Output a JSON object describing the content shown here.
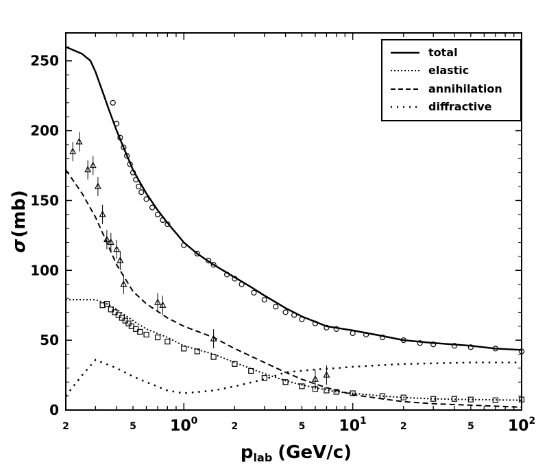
{
  "chart_data": {
    "type": "line",
    "xscale": "log",
    "xlim": [
      0.2,
      100
    ],
    "ylim": [
      0,
      270
    ],
    "xlabel_main": "p",
    "xlabel_sub": "lab",
    "xlabel_unit": "(GeV/c)",
    "ylabel_symbol": "σ",
    "ylabel_unit": "(mb)",
    "y_ticks": [
      {
        "value": 0,
        "label": "0"
      },
      {
        "value": 50,
        "label": "50"
      },
      {
        "value": 100,
        "label": "100"
      },
      {
        "value": 150,
        "label": "150"
      },
      {
        "value": 200,
        "label": "200"
      },
      {
        "value": 250,
        "label": "250"
      }
    ],
    "x_major_labels": [
      {
        "value": 0.2,
        "label": "2",
        "small": true
      },
      {
        "value": 0.5,
        "label": "5",
        "small": true
      },
      {
        "value": 1,
        "label": "10",
        "sup": "0"
      },
      {
        "value": 2,
        "label": "2",
        "small": true
      },
      {
        "value": 5,
        "label": "5",
        "small": true
      },
      {
        "value": 10,
        "label": "10",
        "sup": "1"
      },
      {
        "value": 20,
        "label": "2",
        "small": true
      },
      {
        "value": 50,
        "label": "5",
        "small": true
      },
      {
        "value": 100,
        "label": "10",
        "sup": "2"
      }
    ],
    "legend": [
      {
        "label": "total",
        "style": "solid"
      },
      {
        "label": "elastic",
        "style": "dotted"
      },
      {
        "label": "annihilation",
        "style": "dashed"
      },
      {
        "label": "diffractive",
        "style": "sparse-dotted"
      }
    ],
    "series": [
      {
        "name": "total",
        "style": "solid",
        "x": [
          0.2,
          0.25,
          0.28,
          0.3,
          0.33,
          0.36,
          0.4,
          0.45,
          0.5,
          0.55,
          0.6,
          0.7,
          0.8,
          1.0,
          1.2,
          1.5,
          2,
          2.5,
          3,
          4,
          5,
          7,
          10,
          15,
          20,
          30,
          50,
          70,
          100
        ],
        "y": [
          260,
          255,
          250,
          242,
          228,
          215,
          200,
          185,
          172,
          163,
          155,
          143,
          134,
          120,
          112,
          104,
          95,
          88,
          82,
          73,
          67,
          60,
          57,
          53,
          50,
          48,
          46,
          44,
          43
        ]
      },
      {
        "name": "elastic",
        "style": "dotted",
        "x": [
          0.2,
          0.3,
          0.35,
          0.4,
          0.5,
          0.6,
          0.8,
          1.0,
          1.5,
          2,
          3,
          4,
          5,
          6,
          8,
          10,
          15,
          20,
          30,
          50,
          100
        ],
        "y": [
          79,
          79,
          76,
          72,
          64,
          58,
          52,
          46,
          40,
          34,
          26,
          21,
          18,
          16,
          13,
          12,
          10,
          9,
          8,
          7.5,
          7
        ]
      },
      {
        "name": "annihilation",
        "style": "dashed",
        "x": [
          0.2,
          0.25,
          0.3,
          0.35,
          0.4,
          0.5,
          0.6,
          0.8,
          1.0,
          1.5,
          2,
          3,
          4,
          5,
          7,
          10,
          15,
          20,
          30,
          50,
          100
        ],
        "y": [
          172,
          155,
          138,
          120,
          104,
          85,
          76,
          66,
          60,
          52,
          44,
          34,
          27,
          22,
          16,
          11,
          8,
          6,
          4.5,
          3.5,
          2
        ]
      },
      {
        "name": "diffractive",
        "style": "sparse-dotted",
        "x": [
          0.2,
          0.25,
          0.3,
          0.4,
          0.5,
          0.6,
          0.8,
          1.0,
          1.5,
          2,
          3,
          4,
          6,
          8,
          10,
          20,
          50,
          100
        ],
        "y": [
          10,
          25,
          36,
          30,
          24,
          20,
          14,
          12,
          14,
          17,
          22,
          27,
          29,
          30,
          31,
          33,
          34,
          34
        ]
      }
    ],
    "data_points": {
      "total": {
        "marker": "circle",
        "x": [
          0.38,
          0.4,
          0.42,
          0.44,
          0.46,
          0.48,
          0.5,
          0.52,
          0.54,
          0.56,
          0.6,
          0.65,
          0.7,
          0.75,
          0.8,
          1.0,
          1.2,
          1.4,
          1.5,
          1.8,
          2.0,
          2.2,
          2.6,
          3.0,
          3.5,
          4.0,
          4.5,
          5.0,
          6.0,
          7.0,
          8.0,
          10,
          12,
          15,
          20,
          25,
          30,
          40,
          50,
          70,
          100
        ],
        "y": [
          220,
          205,
          195,
          188,
          182,
          176,
          170,
          165,
          160,
          156,
          151,
          145,
          140,
          136,
          133,
          118,
          112,
          107,
          104,
          97,
          94,
          90,
          84,
          79,
          74,
          70,
          68,
          65,
          62,
          59,
          58,
          55,
          54,
          52,
          50,
          48,
          47,
          46,
          45,
          44,
          42
        ]
      },
      "elastic": {
        "marker": "square",
        "x": [
          0.33,
          0.35,
          0.37,
          0.39,
          0.41,
          0.43,
          0.45,
          0.47,
          0.49,
          0.52,
          0.55,
          0.6,
          0.7,
          0.8,
          1.0,
          1.2,
          1.5,
          2.0,
          2.5,
          3.0,
          4.0,
          5.0,
          6.0,
          7.0,
          8.0,
          10,
          15,
          20,
          30,
          40,
          50,
          70,
          100
        ],
        "y": [
          75,
          76,
          72,
          70,
          68,
          66,
          64,
          62,
          60,
          58,
          56,
          54,
          52,
          49,
          44,
          42,
          38,
          33,
          28,
          23,
          20,
          17,
          15,
          14,
          13,
          12,
          10,
          9,
          8,
          8,
          7.5,
          7,
          7.5
        ]
      },
      "annihilation": {
        "marker": "triangle",
        "x": [
          0.22,
          0.24,
          0.27,
          0.29,
          0.31,
          0.33,
          0.35,
          0.37,
          0.4,
          0.42,
          0.44,
          0.7,
          0.75,
          1.5,
          6.0,
          7.0
        ],
        "y": [
          185,
          192,
          172,
          175,
          160,
          140,
          122,
          120,
          115,
          107,
          90,
          77,
          75,
          51,
          22,
          25
        ]
      }
    }
  }
}
